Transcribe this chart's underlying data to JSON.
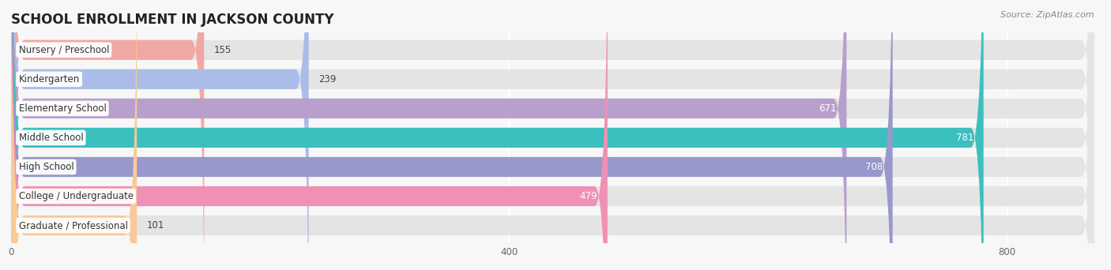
{
  "title": "SCHOOL ENROLLMENT IN JACKSON COUNTY",
  "source": "Source: ZipAtlas.com",
  "categories": [
    "Nursery / Preschool",
    "Kindergarten",
    "Elementary School",
    "Middle School",
    "High School",
    "College / Undergraduate",
    "Graduate / Professional"
  ],
  "values": [
    155,
    239,
    671,
    781,
    708,
    479,
    101
  ],
  "bar_colors": [
    "#f2a8a2",
    "#aabde8",
    "#b89fcc",
    "#3bbfbf",
    "#9898cc",
    "#f090b4",
    "#f8ca98"
  ],
  "value_inside_threshold": 400,
  "xlim_max": 870,
  "xticks": [
    0,
    400,
    800
  ],
  "bg_color": "#f7f7f7",
  "bar_bg_color": "#e4e4e4",
  "bar_height": 0.68,
  "bar_gap": 1.0,
  "title_fontsize": 12,
  "source_fontsize": 8,
  "label_fontsize": 8.5,
  "value_fontsize": 8.5,
  "rounding": 12
}
